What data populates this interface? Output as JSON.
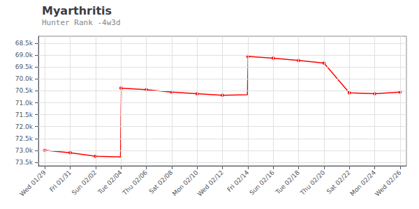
{
  "chart_data": {
    "type": "line",
    "title": "Myarthritis",
    "subtitle": "Hunter Rank -4w3d",
    "xlim": [
      -0.5,
      28.5
    ],
    "xticks": [
      {
        "value": 0,
        "label": "Wed 01/29"
      },
      {
        "value": 2,
        "label": "Fri 01/31"
      },
      {
        "value": 4,
        "label": "Sun 02/02"
      },
      {
        "value": 6,
        "label": "Tue 02/04"
      },
      {
        "value": 8,
        "label": "Thu 02/06"
      },
      {
        "value": 10,
        "label": "Sat 02/08"
      },
      {
        "value": 12,
        "label": "Mon 02/10"
      },
      {
        "value": 14,
        "label": "Wed 02/12"
      },
      {
        "value": 16,
        "label": "Fri 02/14"
      },
      {
        "value": 18,
        "label": "Sun 02/16"
      },
      {
        "value": 20,
        "label": "Tue 02/18"
      },
      {
        "value": 22,
        "label": "Thu 02/20"
      },
      {
        "value": 24,
        "label": "Sat 02/22"
      },
      {
        "value": 26,
        "label": "Mon 02/24"
      },
      {
        "value": 28,
        "label": "Wed 02/26"
      }
    ],
    "ylim": [
      73650,
      68200
    ],
    "yticks": [
      {
        "value": 68500,
        "label": "68.5k"
      },
      {
        "value": 69000,
        "label": "69.0k"
      },
      {
        "value": 69500,
        "label": "69.5k"
      },
      {
        "value": 70000,
        "label": "70.0k"
      },
      {
        "value": 70500,
        "label": "70.5k"
      },
      {
        "value": 71000,
        "label": "71.0k"
      },
      {
        "value": 71500,
        "label": "71.5k"
      },
      {
        "value": 72000,
        "label": "72.0k"
      },
      {
        "value": 72500,
        "label": "72.5k"
      },
      {
        "value": 73000,
        "label": "73.0k"
      },
      {
        "value": 73500,
        "label": "73.5k"
      }
    ],
    "grid": true,
    "series": [
      {
        "type": "line",
        "color": "#ff0000",
        "marker": "none",
        "line_style": "solid",
        "x": [
          0,
          2,
          4,
          5.97,
          6.03,
          8,
          10,
          12,
          14,
          15.97,
          16.03,
          18,
          20,
          22,
          24,
          26,
          28
        ],
        "values": [
          73000,
          73100,
          73250,
          73280,
          70380,
          70450,
          70550,
          70620,
          70680,
          70660,
          69050,
          69120,
          69220,
          69330,
          70580,
          70620,
          70550
        ]
      },
      {
        "type": "scatter",
        "color": "#ff0000",
        "marker": "circle",
        "x": [
          0,
          2,
          4,
          6,
          8,
          10,
          12,
          14,
          16,
          18,
          20,
          22,
          24,
          26,
          28
        ],
        "values": [
          73000,
          73100,
          73250,
          70380,
          70450,
          70550,
          70620,
          70680,
          69050,
          69120,
          69220,
          69330,
          70580,
          70620,
          70550
        ]
      }
    ]
  }
}
